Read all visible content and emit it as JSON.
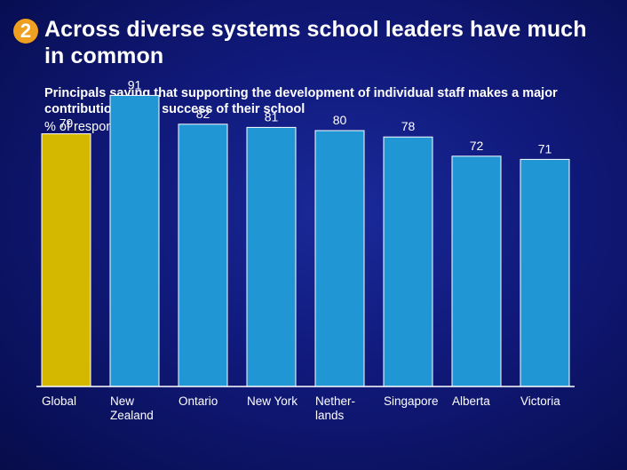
{
  "header": {
    "badge": "2",
    "title": "Across diverse systems school leaders have much in common"
  },
  "chart_data": {
    "type": "bar",
    "title": "Principals saying that supporting the development of individual staff makes a major contribution to the success of their school",
    "ylabel": "% of respondents",
    "categories": [
      [
        "Global"
      ],
      [
        "New",
        "Zealand"
      ],
      [
        "Ontario"
      ],
      [
        "New York"
      ],
      [
        "Nether-",
        "lands"
      ],
      [
        "Singapore"
      ],
      [
        "Alberta"
      ],
      [
        "Victoria"
      ]
    ],
    "values": [
      79,
      91,
      82,
      81,
      80,
      78,
      72,
      71
    ],
    "data_labels": [
      "79",
      "91",
      "82",
      "81",
      "80",
      "78",
      "72",
      "71"
    ],
    "ylim": [
      0,
      100
    ],
    "grid": false,
    "legend": "none",
    "colors": {
      "highlight": "#d4b800",
      "bar": "#2196d4",
      "bar_border": "#ffffff",
      "axis": "#ffffff"
    },
    "highlight_index": 0
  }
}
